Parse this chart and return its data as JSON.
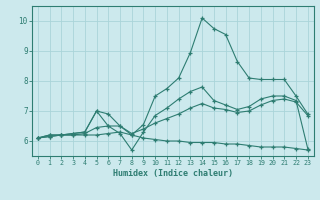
{
  "xlabel": "Humidex (Indice chaleur)",
  "background_color": "#cce9ed",
  "grid_color": "#aad4d9",
  "line_color": "#2e7d72",
  "xlim": [
    -0.5,
    23.5
  ],
  "ylim": [
    5.5,
    10.5
  ],
  "yticks": [
    6,
    7,
    8,
    9,
    10
  ],
  "xticks": [
    0,
    1,
    2,
    3,
    4,
    5,
    6,
    7,
    8,
    9,
    10,
    11,
    12,
    13,
    14,
    15,
    16,
    17,
    18,
    19,
    20,
    21,
    22,
    23
  ],
  "lines": [
    {
      "x": [
        0,
        1,
        2,
        3,
        4,
        5,
        6,
        7,
        8,
        9,
        10,
        11,
        12,
        13,
        14,
        15,
        16,
        17,
        18,
        19,
        20,
        21,
        22,
        23
      ],
      "y": [
        6.1,
        6.2,
        6.2,
        6.25,
        6.3,
        7.0,
        6.9,
        6.5,
        6.2,
        6.55,
        7.5,
        7.75,
        8.1,
        8.95,
        10.1,
        9.75,
        9.55,
        8.65,
        8.1,
        8.05,
        8.05,
        8.05,
        7.5,
        6.9
      ]
    },
    {
      "x": [
        0,
        1,
        2,
        3,
        4,
        5,
        6,
        7,
        8,
        9,
        10,
        11,
        12,
        13,
        14,
        15,
        16,
        17,
        18,
        19,
        20,
        21,
        22,
        23
      ],
      "y": [
        6.1,
        6.2,
        6.2,
        6.25,
        6.3,
        7.0,
        6.5,
        6.25,
        5.7,
        6.3,
        6.85,
        7.1,
        7.4,
        7.65,
        7.8,
        7.35,
        7.2,
        7.05,
        7.15,
        7.4,
        7.5,
        7.5,
        7.35,
        5.75
      ]
    },
    {
      "x": [
        0,
        1,
        2,
        3,
        4,
        5,
        6,
        7,
        8,
        9,
        10,
        11,
        12,
        13,
        14,
        15,
        16,
        17,
        18,
        19,
        20,
        21,
        22,
        23
      ],
      "y": [
        6.1,
        6.15,
        6.2,
        6.2,
        6.25,
        6.45,
        6.5,
        6.5,
        6.25,
        6.4,
        6.6,
        6.75,
        6.9,
        7.1,
        7.25,
        7.1,
        7.05,
        6.95,
        7.0,
        7.2,
        7.35,
        7.4,
        7.3,
        6.85
      ]
    },
    {
      "x": [
        0,
        1,
        2,
        3,
        4,
        5,
        6,
        7,
        8,
        9,
        10,
        11,
        12,
        13,
        14,
        15,
        16,
        17,
        18,
        19,
        20,
        21,
        22,
        23
      ],
      "y": [
        6.1,
        6.15,
        6.2,
        6.2,
        6.2,
        6.2,
        6.25,
        6.3,
        6.2,
        6.1,
        6.05,
        6.0,
        6.0,
        5.95,
        5.95,
        5.95,
        5.9,
        5.9,
        5.85,
        5.8,
        5.8,
        5.8,
        5.75,
        5.7
      ]
    }
  ]
}
